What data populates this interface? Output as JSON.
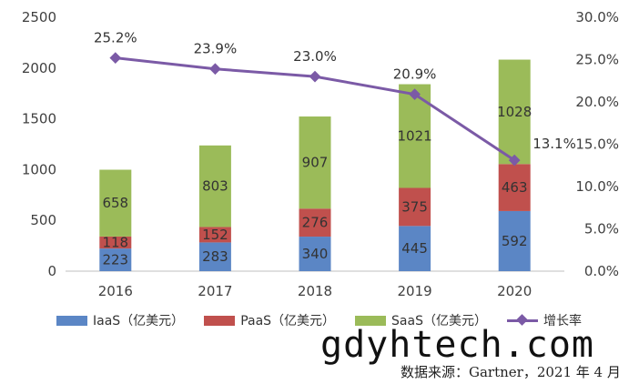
{
  "chart_data": {
    "type": "bar",
    "stacked": true,
    "categories": [
      "2016",
      "2017",
      "2018",
      "2019",
      "2020"
    ],
    "series": [
      {
        "name": "IaaS（亿美元）",
        "values": [
          223,
          283,
          340,
          445,
          592
        ],
        "color": "#5b86c5"
      },
      {
        "name": "PaaS（亿美元）",
        "values": [
          118,
          152,
          276,
          375,
          463
        ],
        "color": "#c0504d"
      },
      {
        "name": "SaaS（亿美元）",
        "values": [
          658,
          803,
          907,
          1021,
          1028
        ],
        "color": "#9bbb59"
      }
    ],
    "line_series": {
      "name": "增长率",
      "values": [
        25.2,
        23.9,
        23.0,
        20.9,
        13.1
      ],
      "labels": [
        "25.2%",
        "23.9%",
        "23.0%",
        "20.9%",
        "13.1%"
      ],
      "color": "#7b5aa6"
    },
    "y_left": {
      "ticks": [
        0,
        500,
        1000,
        1500,
        2000,
        2500
      ],
      "ylim": [
        0,
        2500
      ]
    },
    "y_right": {
      "ticks": [
        "0.0%",
        "5.0%",
        "10.0%",
        "15.0%",
        "20.0%",
        "25.0%",
        "30.0%"
      ],
      "ylim": [
        0,
        30
      ]
    },
    "legend_position": "bottom",
    "grid": false
  },
  "watermark_text": "gdyhtech.com",
  "source_text": "数据来源：Gartner，2021 年 4 月"
}
